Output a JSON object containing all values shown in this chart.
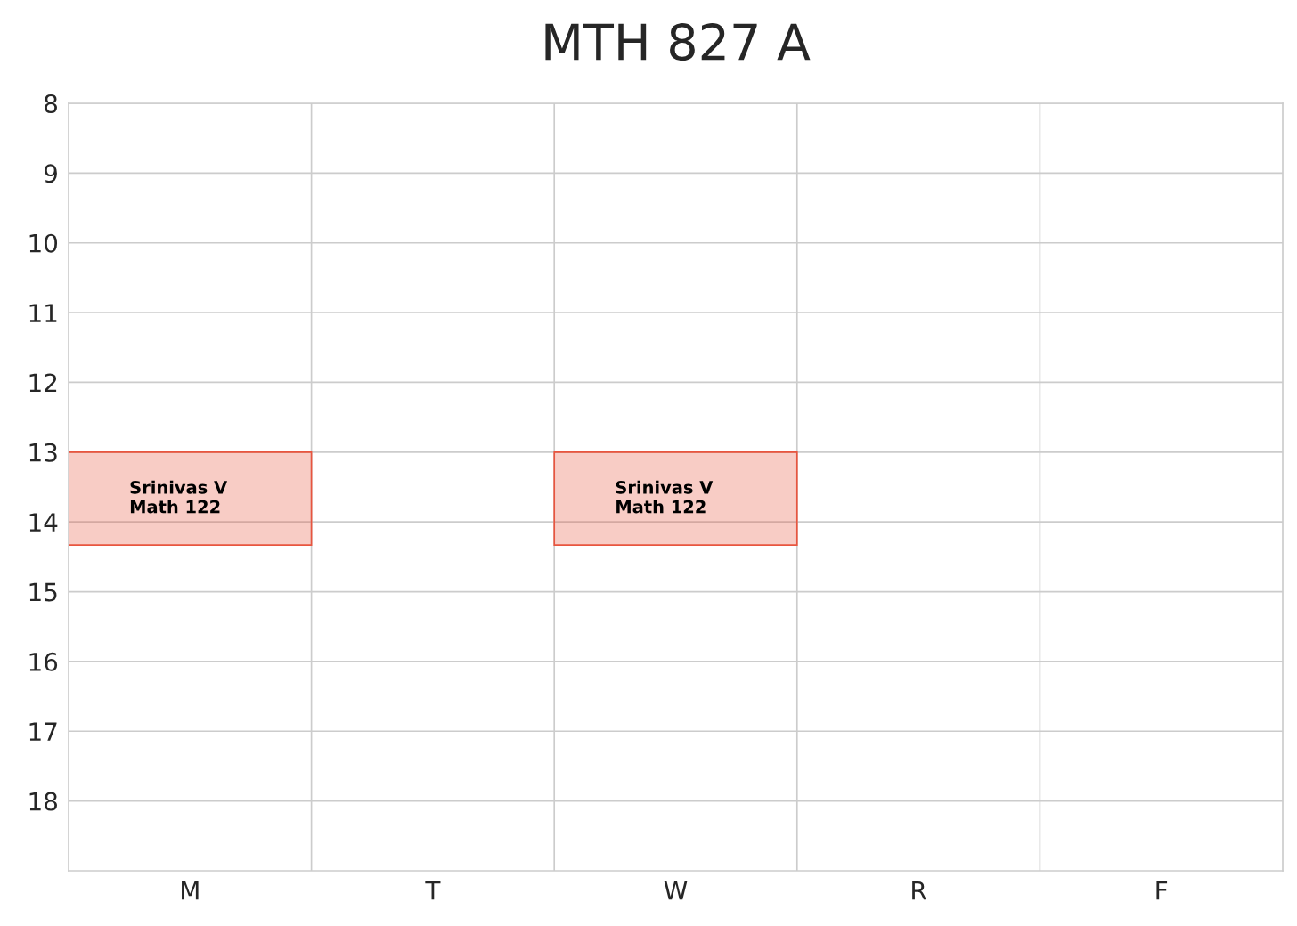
{
  "chart_data": {
    "type": "bar",
    "title": "MTH 827 A",
    "categories": [
      "M",
      "T",
      "W",
      "R",
      "F"
    ],
    "series": [
      {
        "color": "#e8553f",
        "values": [
          1.33,
          null,
          1.33,
          null,
          null
        ],
        "base": [
          13,
          null,
          13,
          null,
          null
        ],
        "value_labels": [
          "Srinivas V\nMath 122",
          null,
          "Srinivas V\nMath 122",
          null,
          null
        ]
      }
    ],
    "ylim": [
      19,
      8
    ],
    "yticks": [
      8,
      9,
      10,
      11,
      12,
      13,
      14,
      15,
      16,
      17,
      18
    ],
    "grid": true
  }
}
